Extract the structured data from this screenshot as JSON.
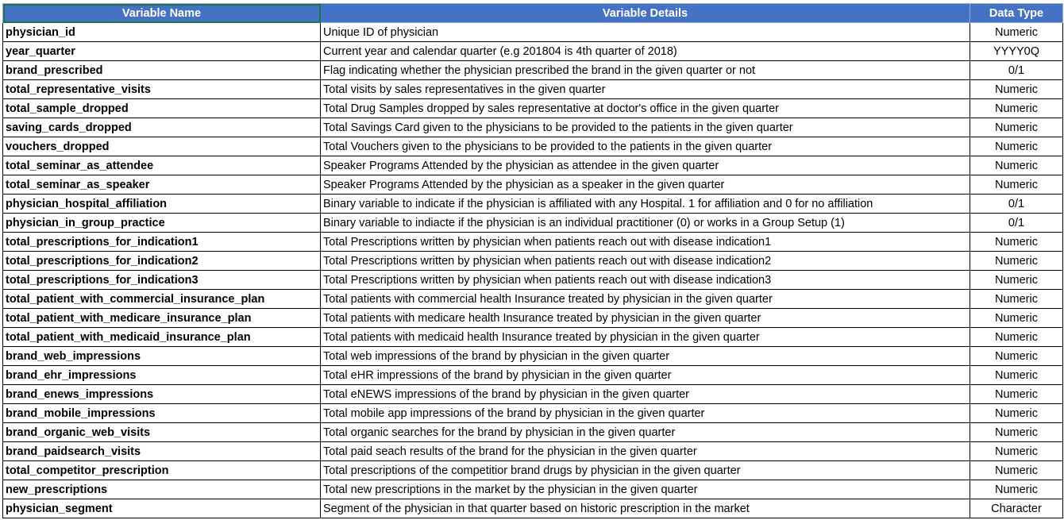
{
  "headers": {
    "variable_name": "Variable Name",
    "variable_details": "Variable Details",
    "data_type": "Data Type"
  },
  "colors": {
    "header_background": "#4472C4",
    "header_text": "#FFFFFF",
    "selection_border": "#217346"
  },
  "rows": [
    {
      "name": "physician_id",
      "details": "Unique ID of physician",
      "type": "Numeric"
    },
    {
      "name": "year_quarter",
      "details": "Current year and calendar quarter (e.g 201804 is 4th quarter of 2018)",
      "type": "YYYY0Q"
    },
    {
      "name": "brand_prescribed",
      "details": "Flag indicating whether the physician prescribed the brand in the given quarter or not",
      "type": "0/1"
    },
    {
      "name": "total_representative_visits",
      "details": "Total visits by sales representatives in the given quarter",
      "type": "Numeric"
    },
    {
      "name": "total_sample_dropped",
      "details": "Total Drug Samples dropped by sales representative at doctor's office in the given quarter",
      "type": "Numeric"
    },
    {
      "name": "saving_cards_dropped",
      "details": "Total Savings Card given to the physicians to be provided to the patients in the given quarter",
      "type": "Numeric"
    },
    {
      "name": "vouchers_dropped",
      "details": "Total Vouchers given to the physicians to be provided to the patients in the given quarter",
      "type": "Numeric"
    },
    {
      "name": "total_seminar_as_attendee",
      "details": "Speaker Programs Attended by the physician as attendee in the given quarter",
      "type": "Numeric"
    },
    {
      "name": "total_seminar_as_speaker",
      "details": "Speaker Programs Attended by the physician as a speaker in the given quarter",
      "type": "Numeric"
    },
    {
      "name": "physician_hospital_affiliation",
      "details": "Binary variable to indicate if the physician is affiliated with any Hospital. 1 for affiliation and 0 for no affiliation",
      "type": "0/1"
    },
    {
      "name": "physician_in_group_practice",
      "details": "Binary variable to indiacte if  the physician is an individual practitioner (0) or works in a Group Setup (1)",
      "type": "0/1"
    },
    {
      "name": "total_prescriptions_for_indication1",
      "details": "Total Prescriptions written by physician when patients reach out with disease indication1",
      "type": "Numeric"
    },
    {
      "name": "total_prescriptions_for_indication2",
      "details": "Total Prescriptions written by physician when patients reach out with disease indication2",
      "type": "Numeric"
    },
    {
      "name": "total_prescriptions_for_indication3",
      "details": "Total Prescriptions written by physician when patients reach out with disease indication3",
      "type": "Numeric"
    },
    {
      "name": "total_patient_with_commercial_insurance_plan",
      "details": "Total patients with commercial health Insurance treated by physician in the given quarter",
      "type": "Numeric"
    },
    {
      "name": "total_patient_with_medicare_insurance_plan",
      "details": "Total patients with medicare health Insurance treated by physician in the given quarter",
      "type": "Numeric"
    },
    {
      "name": "total_patient_with_medicaid_insurance_plan",
      "details": "Total patients with medicaid health Insurance treated by physician in the given quarter",
      "type": "Numeric"
    },
    {
      "name": "brand_web_impressions",
      "details": "Total web impressions of the brand by physician in the given quarter",
      "type": "Numeric"
    },
    {
      "name": "brand_ehr_impressions",
      "details": "Total eHR impressions of the brand by physician in the given quarter",
      "type": "Numeric"
    },
    {
      "name": "brand_enews_impressions",
      "details": "Total eNEWS impressions of the brand by physician in the given quarter",
      "type": "Numeric"
    },
    {
      "name": "brand_mobile_impressions",
      "details": "Total mobile app impressions of the brand by physician in the given quarter",
      "type": "Numeric"
    },
    {
      "name": "brand_organic_web_visits",
      "details": "Total organic searches for the brand by physician in the given quarter",
      "type": "Numeric"
    },
    {
      "name": "brand_paidsearch_visits",
      "details": "Total paid seach results of the brand for the physician in the given quarter",
      "type": "Numeric"
    },
    {
      "name": "total_competitor_prescription",
      "details": "Total prescriptions of the competitior brand drugs by physician in the given quarter",
      "type": "Numeric"
    },
    {
      "name": "new_prescriptions",
      "details": "Total new prescriptions in the market by the physician in the given quarter",
      "type": "Numeric"
    },
    {
      "name": "physician_segment",
      "details": "Segment of the physician in that quarter based on historic prescription in the market",
      "type": "Character"
    }
  ]
}
